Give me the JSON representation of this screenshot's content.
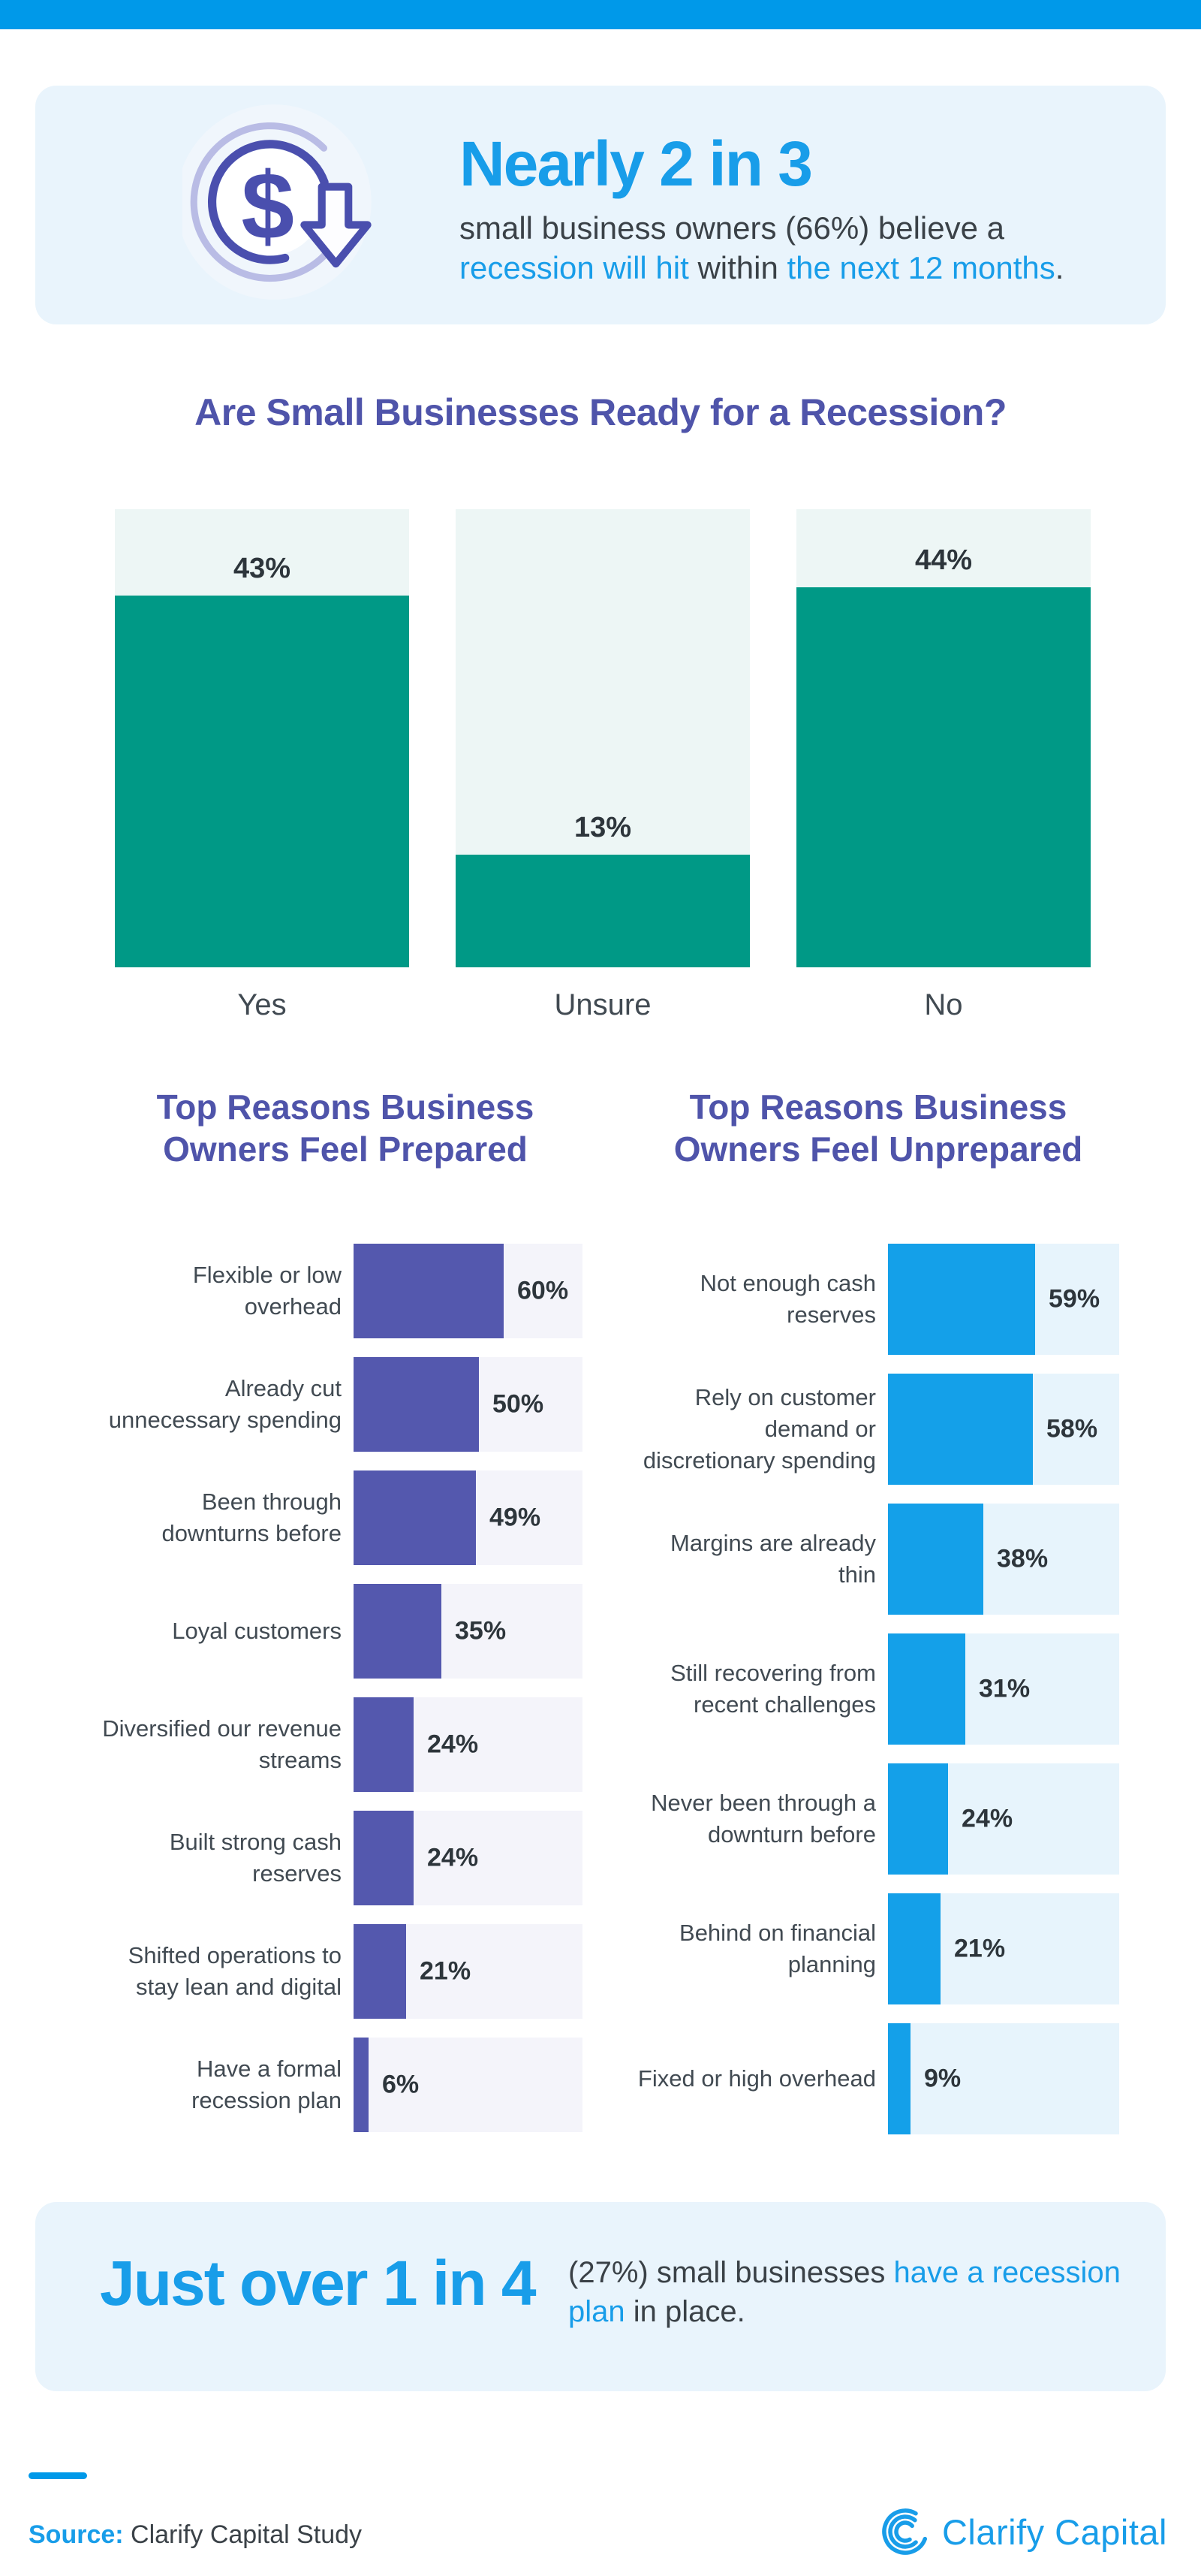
{
  "colors": {
    "accent_blue": "#0099e9",
    "text_blue": "#189de9",
    "indigo_heading": "#4f54aa",
    "dark_text": "#3a4147",
    "label_text": "#414a52",
    "percent_text": "#2d353b",
    "card_bg": "#e9f4fc",
    "teal_bar": "#009986",
    "teal_track": "#edf6f5",
    "purple_bar": "#5458ae",
    "purple_track": "#f4f4fa",
    "blue_bar": "#14a0e9",
    "blue_track": "#e7f4fc",
    "icon_indigo": "#4a4fae",
    "icon_light_ring": "#b9bce5"
  },
  "header": {
    "icon": "dollar-decline-icon",
    "headline": "Nearly 2 in 3",
    "subtitle_segments": [
      {
        "t": "small business owners (66%) believe a ",
        "c": "dark"
      },
      {
        "t": "recession will hit",
        "c": "blue"
      },
      {
        "t": " within ",
        "c": "dark"
      },
      {
        "t": "the next 12 months",
        "c": "blue"
      },
      {
        "t": ".",
        "c": "dark"
      }
    ]
  },
  "chart_data": [
    {
      "id": "recession_ready",
      "type": "bar",
      "orientation": "vertical",
      "title": "Are Small Businesses Ready for a Recession?",
      "categories": [
        "Yes",
        "Unsure",
        "No"
      ],
      "values": [
        43,
        13,
        44
      ],
      "data_labels": [
        "43%",
        "13%",
        "44%"
      ],
      "unit": "%",
      "ylim": [
        0,
        53
      ],
      "grid": false,
      "legend": "none",
      "bar_color": "#009986",
      "track_color": "#edf6f5"
    },
    {
      "id": "prepared_reasons",
      "type": "bar",
      "orientation": "horizontal",
      "title": "Top Reasons Business Owners Feel Prepared",
      "categories": [
        "Flexible or low overhead",
        "Already cut unnecessary spending",
        "Been through downturns before",
        "Loyal customers",
        "Diversified our revenue streams",
        "Built strong cash reserves",
        "Shifted operations to stay lean and digital",
        "Have a formal recession plan"
      ],
      "values": [
        60,
        50,
        49,
        35,
        24,
        24,
        21,
        6
      ],
      "data_labels": [
        "60%",
        "50%",
        "49%",
        "35%",
        "24%",
        "24%",
        "21%",
        "6%"
      ],
      "unit": "%",
      "xlim": [
        0,
        92
      ],
      "grid": false,
      "legend": "none",
      "bar_color": "#5458ae",
      "track_color": "#f4f4fa"
    },
    {
      "id": "unprepared_reasons",
      "type": "bar",
      "orientation": "horizontal",
      "title": "Top Reasons Business Owners Feel Unprepared",
      "categories": [
        "Not enough cash reserves",
        "Rely on customer demand or discretionary spending",
        "Margins are already thin",
        "Still recovering from recent challenges",
        "Never been through a downturn before",
        "Behind on financial planning",
        "Fixed or high overhead"
      ],
      "values": [
        59,
        58,
        38,
        31,
        24,
        21,
        9
      ],
      "data_labels": [
        "59%",
        "58%",
        "38%",
        "31%",
        "24%",
        "21%",
        "9%"
      ],
      "unit": "%",
      "xlim": [
        0,
        92
      ],
      "grid": false,
      "legend": "none",
      "bar_color": "#14a0e9",
      "track_color": "#e7f4fc"
    }
  ],
  "bottom_card": {
    "headline": "Just over 1 in 4",
    "text_segments": [
      {
        "t": "(27%) small businesses ",
        "c": "dark"
      },
      {
        "t": "have a recession plan",
        "c": "blue"
      },
      {
        "t": " in place.",
        "c": "dark"
      }
    ]
  },
  "footer": {
    "source_label": "Source:",
    "source_text": " Clarify Capital Study",
    "logo_text": "Clarify Capital"
  }
}
